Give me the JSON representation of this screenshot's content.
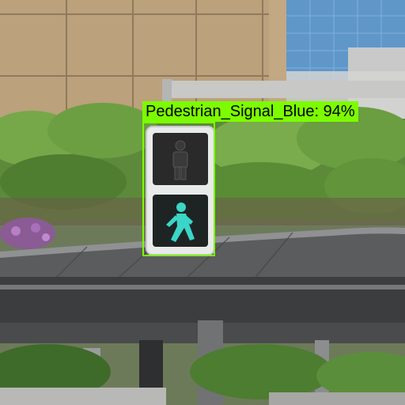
{
  "detection": {
    "label": "Pedestrian_Signal_Blue: 94%",
    "class_name": "Pedestrian_Signal_Blue",
    "confidence_percent": 94,
    "box_color": "#7cfc00"
  },
  "signal": {
    "lit_lamp": "walk",
    "lit_color": "#3ad6c8"
  }
}
